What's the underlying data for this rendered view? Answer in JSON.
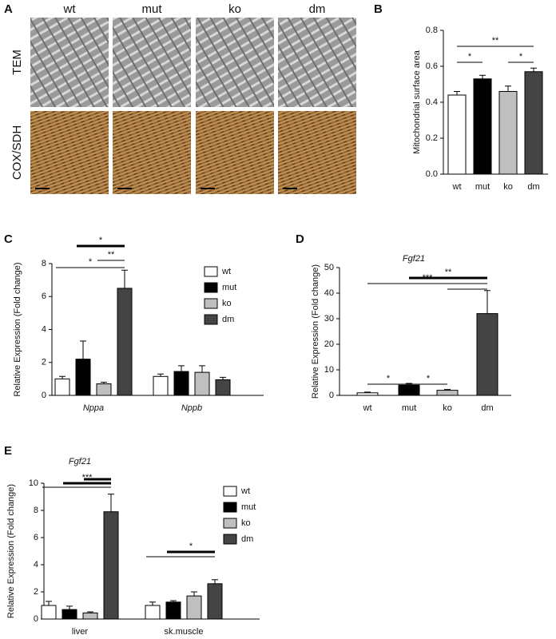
{
  "panel_a": {
    "panel_label": "A",
    "columns": [
      "wt",
      "mut",
      "ko",
      "dm"
    ],
    "rows": [
      "TEM",
      "COX/SDH"
    ]
  },
  "chart_data": [
    {
      "type": "bar",
      "panel_label": "B",
      "ylabel": "Mitochondrial surface area",
      "categories": [
        "wt",
        "mut",
        "ko",
        "dm"
      ],
      "values": [
        0.44,
        0.53,
        0.46,
        0.57
      ],
      "errors": [
        0.02,
        0.02,
        0.03,
        0.02
      ],
      "colors": [
        "#ffffff",
        "#000000",
        "#bfbfbf",
        "#444444"
      ],
      "ylim": [
        0,
        0.8
      ],
      "yticks": [
        {
          "value": 0,
          "label": "0.0"
        },
        0.2,
        0.4,
        0.6,
        0.8
      ],
      "significance": [
        {
          "pair": [
            "wt",
            "mut"
          ],
          "label": "*"
        },
        {
          "pair": [
            "wt",
            "dm"
          ],
          "label": "**"
        },
        {
          "pair": [
            "ko",
            "dm"
          ],
          "label": "*"
        }
      ]
    },
    {
      "type": "grouped_bar",
      "panel_label": "C",
      "ylabel": "Relative Expression (Fold change)",
      "categories": [
        "Nppa",
        "Nppb"
      ],
      "category_style": "italic",
      "series": [
        {
          "name": "wt",
          "color": "#ffffff",
          "values": [
            1.0,
            1.15
          ],
          "errors": [
            0.15,
            0.15
          ]
        },
        {
          "name": "mut",
          "color": "#000000",
          "values": [
            2.2,
            1.45
          ],
          "errors": [
            1.1,
            0.35
          ]
        },
        {
          "name": "ko",
          "color": "#bfbfbf",
          "values": [
            0.7,
            1.4
          ],
          "errors": [
            0.1,
            0.4
          ]
        },
        {
          "name": "dm",
          "color": "#444444",
          "values": [
            6.5,
            0.95
          ],
          "errors": [
            1.1,
            0.15
          ]
        }
      ],
      "ylim": [
        0,
        8
      ],
      "yticks": [
        0,
        2,
        4,
        6,
        8
      ],
      "legend": "right",
      "significance": [
        {
          "group": "Nppa",
          "pair": [
            "mut",
            "dm"
          ],
          "label": "*",
          "thick": true
        },
        {
          "group": "Nppa",
          "pair": [
            "ko",
            "dm"
          ],
          "label": "**"
        },
        {
          "group": "Nppa",
          "pair": [
            "wt",
            "dm"
          ],
          "label": "*"
        }
      ]
    },
    {
      "type": "bar",
      "panel_label": "D",
      "title": "Fgf21",
      "ylabel": "Relative Expression (Fold change)",
      "categories": [
        "wt",
        "mut",
        "ko",
        "dm"
      ],
      "values": [
        1,
        4,
        2,
        32
      ],
      "errors": [
        0.3,
        0.7,
        0.3,
        9
      ],
      "colors": [
        "#ffffff",
        "#000000",
        "#bfbfbf",
        "#444444"
      ],
      "ylim": [
        0,
        50
      ],
      "yticks": [
        0,
        10,
        20,
        30,
        40,
        50
      ],
      "significance": [
        {
          "pair": [
            "wt",
            "mut"
          ],
          "label": "*"
        },
        {
          "pair": [
            "mut",
            "ko"
          ],
          "label": "*"
        },
        {
          "pair": [
            "mut",
            "dm"
          ],
          "label": "**",
          "thick": true
        },
        {
          "pair": [
            "wt",
            "dm"
          ],
          "label": "***"
        },
        {
          "pair": [
            "ko",
            "dm"
          ]
        }
      ]
    },
    {
      "type": "grouped_bar",
      "panel_label": "E",
      "title": "Fgf21",
      "ylabel": "Relative Expression (Fold change)",
      "categories": [
        "liver",
        "sk.muscle"
      ],
      "category_style": "normal",
      "series": [
        {
          "name": "wt",
          "color": "#ffffff",
          "values": [
            1.0,
            1.0
          ],
          "errors": [
            0.3,
            0.25
          ]
        },
        {
          "name": "mut",
          "color": "#000000",
          "values": [
            0.7,
            1.25
          ],
          "errors": [
            0.25,
            0.1
          ]
        },
        {
          "name": "ko",
          "color": "#bfbfbf",
          "values": [
            0.45,
            1.7
          ],
          "errors": [
            0.08,
            0.3
          ]
        },
        {
          "name": "dm",
          "color": "#444444",
          "values": [
            7.9,
            2.6
          ],
          "errors": [
            1.3,
            0.3
          ]
        }
      ],
      "ylim": [
        0,
        10
      ],
      "yticks": [
        0,
        2,
        4,
        6,
        8,
        10
      ],
      "legend": "right",
      "significance": [
        {
          "group": "liver",
          "pair": [
            "wt",
            "dm"
          ]
        },
        {
          "group": "liver",
          "pair": [
            "mut",
            "dm"
          ],
          "label": "***",
          "thick": true
        },
        {
          "group": "liver",
          "pair": [
            "ko",
            "dm"
          ],
          "thick": true
        },
        {
          "group": "sk.muscle",
          "pair": [
            "wt",
            "dm"
          ]
        },
        {
          "group": "sk.muscle",
          "pair": [
            "mut",
            "dm"
          ],
          "label": "*",
          "thick": true
        }
      ]
    }
  ]
}
